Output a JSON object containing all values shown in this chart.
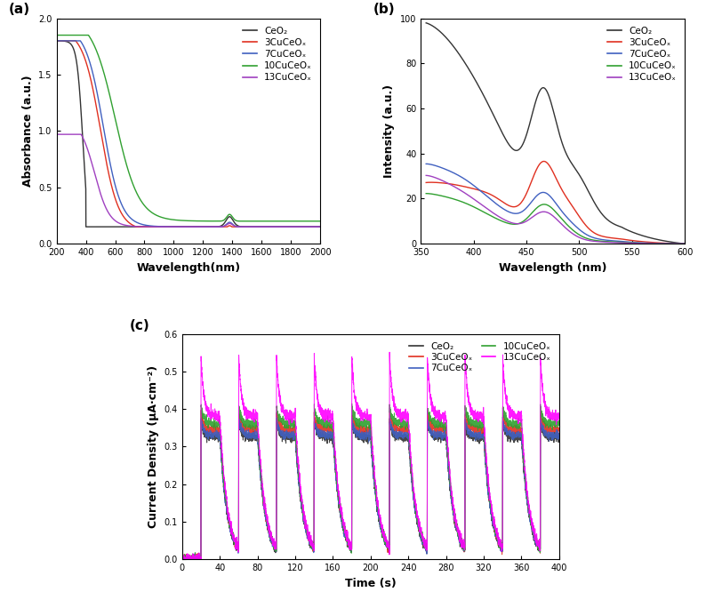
{
  "panel_a": {
    "title": "(a)",
    "xlabel": "Wavelength(nm)",
    "ylabel": "Absorbance (a.u.)",
    "xlim": [
      200,
      2000
    ],
    "ylim": [
      0.0,
      2.0
    ],
    "xticks": [
      200,
      400,
      600,
      800,
      1000,
      1200,
      1400,
      1600,
      1800,
      2000
    ],
    "yticks": [
      0.0,
      0.5,
      1.0,
      1.5,
      2.0
    ],
    "colors": {
      "CeO2": "#333333",
      "3CuCeOx": "#e03020",
      "7CuCeOx": "#4060c0",
      "10CuCeOx": "#30a030",
      "13CuCeOx": "#a040c0"
    },
    "legend_labels": [
      "CeO₂",
      "3CuCeOₓ",
      "7CuCeOₓ",
      "10CuCeOₓ",
      "13CuCeOₓ"
    ]
  },
  "panel_b": {
    "title": "(b)",
    "xlabel": "Wavelength (nm)",
    "ylabel": "Intensity (a.u.)",
    "xlim": [
      350,
      600
    ],
    "ylim": [
      0,
      100
    ],
    "xticks": [
      350,
      400,
      450,
      500,
      550,
      600
    ],
    "yticks": [
      0,
      20,
      40,
      60,
      80,
      100
    ],
    "colors": {
      "CeO2": "#333333",
      "3CuCeOx": "#e03020",
      "7CuCeOx": "#4060c0",
      "10CuCeOx": "#30a030",
      "13CuCeOx": "#a040c0"
    },
    "legend_labels": [
      "CeO₂",
      "3CuCeOₓ",
      "7CuCeOₓ",
      "10CuCeOₓ",
      "13CuCeOₓ"
    ]
  },
  "panel_c": {
    "title": "(c)",
    "xlabel": "Time (s)",
    "ylabel": "Current Density (μA·cm⁻²)",
    "xlim": [
      0,
      400
    ],
    "ylim": [
      0,
      0.6
    ],
    "xticks": [
      0,
      40,
      80,
      120,
      160,
      200,
      240,
      280,
      320,
      360,
      400
    ],
    "yticks": [
      0.0,
      0.1,
      0.2,
      0.3,
      0.4,
      0.5,
      0.6
    ],
    "colors": {
      "CeO2": "#333333",
      "3CuCeOx": "#e03020",
      "7CuCeOx": "#4060c0",
      "10CuCeOx": "#30a030",
      "13CuCeOx": "#ff00ff"
    },
    "legend_labels": [
      "CeO₂",
      "3CuCeOₓ",
      "7CuCeOₓ",
      "10CuCeOₓ",
      "13CuCeOₓ"
    ]
  }
}
